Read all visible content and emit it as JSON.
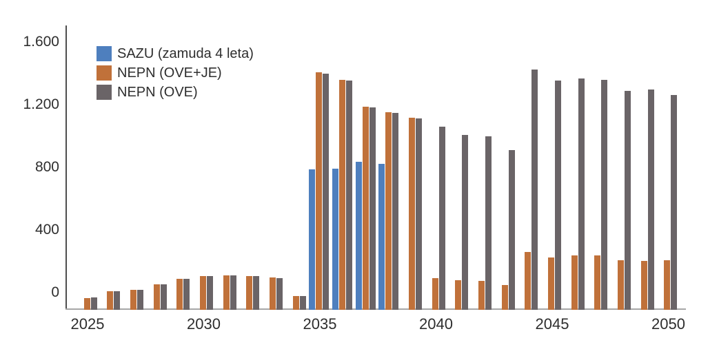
{
  "chart_data": {
    "type": "bar",
    "title": "",
    "xlabel": "",
    "ylabel": "",
    "categories": [
      2025,
      2026,
      2027,
      2028,
      2029,
      2030,
      2031,
      2032,
      2033,
      2034,
      2035,
      2036,
      2037,
      2038,
      2039,
      2040,
      2041,
      2042,
      2043,
      2044,
      2045,
      2046,
      2047,
      2048,
      2049,
      2050
    ],
    "series": [
      {
        "name": "SAZU (zamuda 4 leta)",
        "color": "#4E7FBE",
        "values": [
          0,
          0,
          0,
          0,
          0,
          0,
          0,
          0,
          0,
          0,
          890,
          895,
          940,
          925,
          0,
          0,
          0,
          0,
          0,
          0,
          0,
          0,
          0,
          0,
          0,
          0
        ]
      },
      {
        "name": "NEPN (OVE+JE)",
        "color": "#C0713A",
        "values": [
          65,
          110,
          120,
          155,
          190,
          205,
          210,
          205,
          200,
          80,
          1510,
          1465,
          1290,
          1255,
          1220,
          195,
          180,
          175,
          150,
          360,
          325,
          340,
          340,
          310,
          305,
          310
        ]
      },
      {
        "name": "NEPN (OVE)",
        "color": "#6A6467",
        "values": [
          70,
          110,
          120,
          155,
          190,
          205,
          210,
          205,
          195,
          80,
          1505,
          1460,
          1285,
          1250,
          1215,
          1165,
          1110,
          1100,
          1015,
          1530,
          1460,
          1470,
          1465,
          1395,
          1400,
          1365
        ]
      }
    ],
    "y_ticks": [
      0,
      400,
      800,
      1200,
      1600
    ],
    "y_tick_labels": [
      "0",
      "400",
      "800",
      "1.200",
      "1.600"
    ],
    "x_tick_years": [
      2025,
      2030,
      2035,
      2040,
      2045,
      2050
    ],
    "x_tick_labels": [
      "2025",
      "2030",
      "2035",
      "2040",
      "2045",
      "2050"
    ],
    "ylim": [
      0,
      1800
    ],
    "grid": false,
    "legend_position": "top-left"
  }
}
